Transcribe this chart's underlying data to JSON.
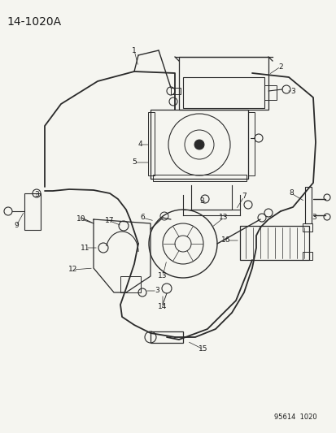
{
  "title": "14-1020A",
  "footer": "95614  1020",
  "bg_color": "#f5f5f0",
  "line_color": "#2a2a2a",
  "text_color": "#1a1a1a",
  "title_fontsize": 10,
  "footer_fontsize": 6,
  "label_fontsize": 7,
  "fig_width": 4.14,
  "fig_height": 5.33,
  "dpi": 100
}
